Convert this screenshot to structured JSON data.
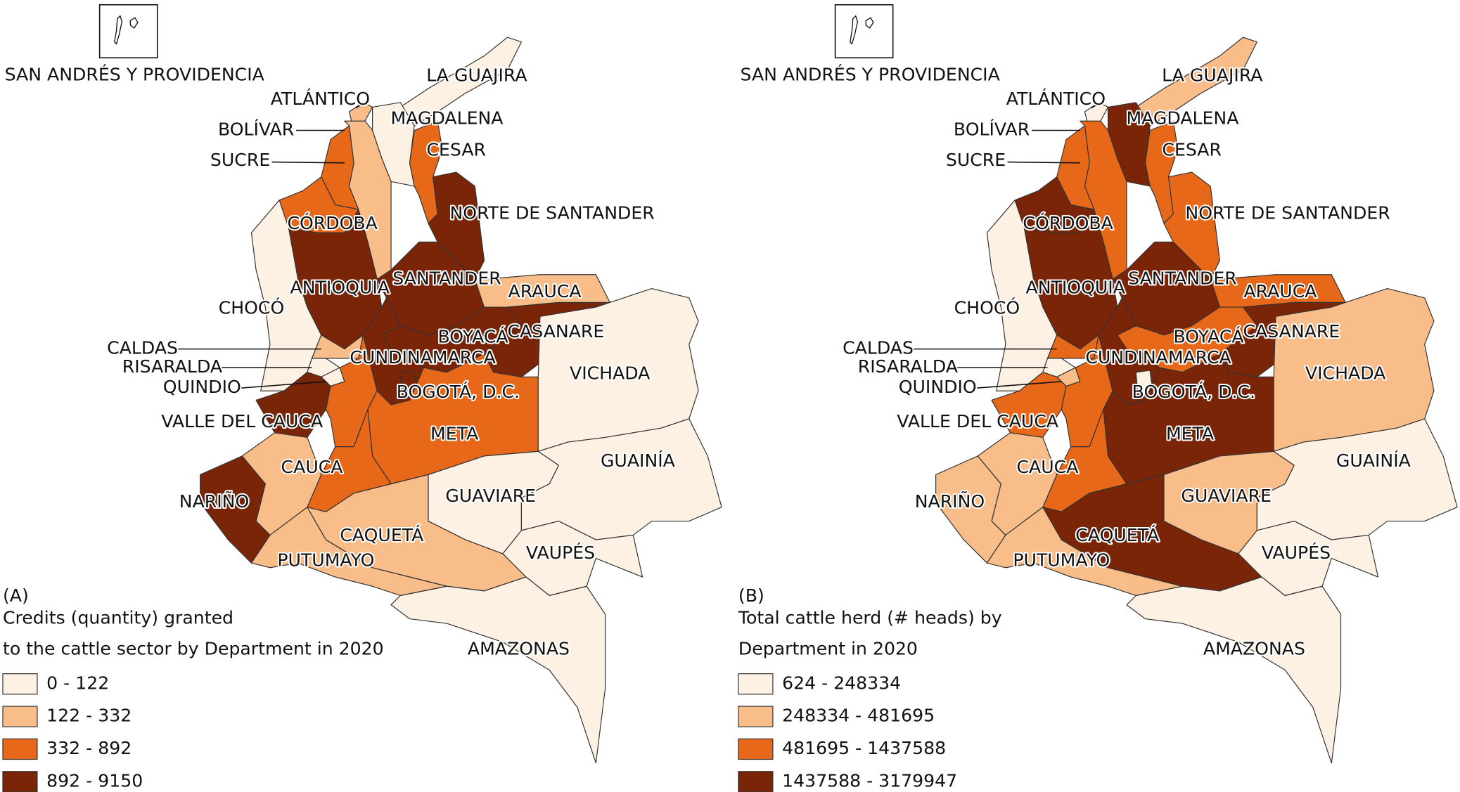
{
  "maps": [
    {
      "panel": "(A)",
      "inset_label": "SAN ANDRÉS Y PROVIDENCIA",
      "legend_title": [
        "Credits (quantity) granted",
        "to the cattle sector by Department in 2020"
      ],
      "legend": [
        {
          "label": "0 - 122",
          "color": "#fdf1e4"
        },
        {
          "label": "122 - 332",
          "color": "#f8bd88"
        },
        {
          "label": "332 - 892",
          "color": "#e8681a"
        },
        {
          "label": "892 - 9150",
          "color": "#7a2508"
        }
      ],
      "departments": [
        {
          "name": "LA GUAJIRA",
          "color": "#fdf1e4"
        },
        {
          "name": "ATLÁNTICO",
          "color": "#f8bd88"
        },
        {
          "name": "MAGDALENA",
          "color": "#fdf1e4"
        },
        {
          "name": "BOLÍVAR",
          "color": "#f8bd88"
        },
        {
          "name": "SUCRE",
          "color": "#e8681a"
        },
        {
          "name": "CÓRDOBA",
          "color": "#e8681a"
        },
        {
          "name": "CESAR",
          "color": "#e8681a"
        },
        {
          "name": "NORTE DE SANTANDER",
          "color": "#7a2508"
        },
        {
          "name": "ANTIOQUIA",
          "color": "#7a2508"
        },
        {
          "name": "SANTANDER",
          "color": "#7a2508"
        },
        {
          "name": "ARAUCA",
          "color": "#f8bd88"
        },
        {
          "name": "CHOCÓ",
          "color": "#fdf1e4"
        },
        {
          "name": "CALDAS",
          "color": "#f8bd88"
        },
        {
          "name": "RISARALDA",
          "color": "#fdf1e4"
        },
        {
          "name": "QUINDIO",
          "color": "#fdf1e4"
        },
        {
          "name": "VALLE DEL CAUCA",
          "color": "#7a2508"
        },
        {
          "name": null,
          "color": "#e8681a"
        },
        {
          "name": "BOYACÁ",
          "color": "#7a2508"
        },
        {
          "name": "CASANARE",
          "color": "#7a2508"
        },
        {
          "name": "CUNDINAMARCA",
          "color": "#7a2508"
        },
        {
          "name": "BOGOTÁ, D.C.",
          "color": "#7a2508"
        },
        {
          "name": "META",
          "color": "#e8681a"
        },
        {
          "name": "VICHADA",
          "color": "#fdf1e4"
        },
        {
          "name": null,
          "color": "#e8681a"
        },
        {
          "name": "CAUCA",
          "color": "#f8bd88"
        },
        {
          "name": "NARIÑO",
          "color": "#7a2508"
        },
        {
          "name": "PUTUMAYO",
          "color": "#f8bd88"
        },
        {
          "name": "CAQUETÁ",
          "color": "#f8bd88"
        },
        {
          "name": "GUAVIARE",
          "color": "#fdf1e4"
        },
        {
          "name": "GUAINÍA",
          "color": "#fdf1e4"
        },
        {
          "name": "VAUPÉS",
          "color": "#fdf1e4"
        },
        {
          "name": "AMAZONAS",
          "color": "#fdf1e4"
        }
      ]
    },
    {
      "panel": "(B)",
      "inset_label": "SAN ANDRÉS Y PROVIDENCIA",
      "legend_title": [
        "Total cattle herd (# heads) by",
        "Department in 2020"
      ],
      "legend": [
        {
          "label": "624 - 248334",
          "color": "#fdf1e4"
        },
        {
          "label": "248334 - 481695",
          "color": "#f8bd88"
        },
        {
          "label": "481695 - 1437588",
          "color": "#e8681a"
        },
        {
          "label": "1437588 - 3179947",
          "color": "#7a2508"
        }
      ],
      "departments": [
        {
          "name": "LA GUAJIRA",
          "color": "#f8bd88"
        },
        {
          "name": "ATLÁNTICO",
          "color": "#fdf1e4"
        },
        {
          "name": "MAGDALENA",
          "color": "#7a2508"
        },
        {
          "name": "BOLÍVAR",
          "color": "#e8681a"
        },
        {
          "name": "SUCRE",
          "color": "#e8681a"
        },
        {
          "name": "CÓRDOBA",
          "color": "#7a2508"
        },
        {
          "name": "CESAR",
          "color": "#e8681a"
        },
        {
          "name": "NORTE DE SANTANDER",
          "color": "#e8681a"
        },
        {
          "name": "ANTIOQUIA",
          "color": "#7a2508"
        },
        {
          "name": "SANTANDER",
          "color": "#7a2508"
        },
        {
          "name": "ARAUCA",
          "color": "#e8681a"
        },
        {
          "name": "CHOCÓ",
          "color": "#fdf1e4"
        },
        {
          "name": "CALDAS",
          "color": "#e8681a"
        },
        {
          "name": "RISARALDA",
          "color": "#fdf1e4"
        },
        {
          "name": "QUINDIO",
          "color": "#f8bd88"
        },
        {
          "name": "VALLE DEL CAUCA",
          "color": "#e8681a"
        },
        {
          "name": null,
          "color": "#e8681a"
        },
        {
          "name": "BOYACÁ",
          "color": "#e8681a"
        },
        {
          "name": "CASANARE",
          "color": "#7a2508"
        },
        {
          "name": "CUNDINAMARCA",
          "color": "#7a2508"
        },
        {
          "name": "BOGOTÁ, D.C.",
          "color": "#fdf1e4"
        },
        {
          "name": "META",
          "color": "#7a2508"
        },
        {
          "name": "VICHADA",
          "color": "#f8bd88"
        },
        {
          "name": null,
          "color": "#e8681a"
        },
        {
          "name": "CAUCA",
          "color": "#f8bd88"
        },
        {
          "name": "NARIÑO",
          "color": "#f8bd88"
        },
        {
          "name": "PUTUMAYO",
          "color": "#f8bd88"
        },
        {
          "name": "CAQUETÁ",
          "color": "#7a2508"
        },
        {
          "name": "GUAVIARE",
          "color": "#f8bd88"
        },
        {
          "name": "GUAINÍA",
          "color": "#fdf1e4"
        },
        {
          "name": "VAUPÉS",
          "color": "#fdf1e4"
        },
        {
          "name": "AMAZONAS",
          "color": "#fdf1e4"
        }
      ]
    }
  ]
}
